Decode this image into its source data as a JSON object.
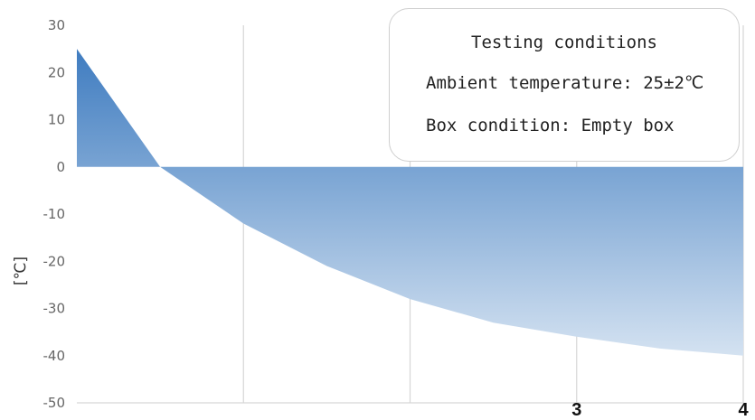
{
  "chart_data": {
    "type": "area",
    "ylabel": "[℃]",
    "ylim": [
      -50,
      30
    ],
    "y_ticks": [
      30,
      20,
      10,
      0,
      -10,
      -20,
      -30,
      -40,
      -50
    ],
    "xlim": [
      0,
      4
    ],
    "x_tick_labels": [
      {
        "x": 3,
        "label": "3"
      },
      {
        "x": 4,
        "label": "4"
      }
    ],
    "grid_x": [
      1,
      2,
      3,
      4
    ],
    "grid": true,
    "series": [
      {
        "x": [
          0,
          0.5,
          1,
          1.5,
          2,
          2.5,
          3,
          3.5,
          4
        ],
        "y": [
          25,
          0,
          -12,
          -21,
          -28,
          -33,
          -36,
          -38.5,
          -40
        ]
      }
    ],
    "colors": {
      "fill_top": "#3f7cc0",
      "fill_bottom": "#d4e2f1",
      "grid": "#d6d6d6"
    },
    "legend": {
      "placement": "top-right",
      "title": "Testing conditions",
      "lines": [
        "Ambient temperature: 25±2℃",
        "Box condition: Empty box"
      ]
    }
  }
}
